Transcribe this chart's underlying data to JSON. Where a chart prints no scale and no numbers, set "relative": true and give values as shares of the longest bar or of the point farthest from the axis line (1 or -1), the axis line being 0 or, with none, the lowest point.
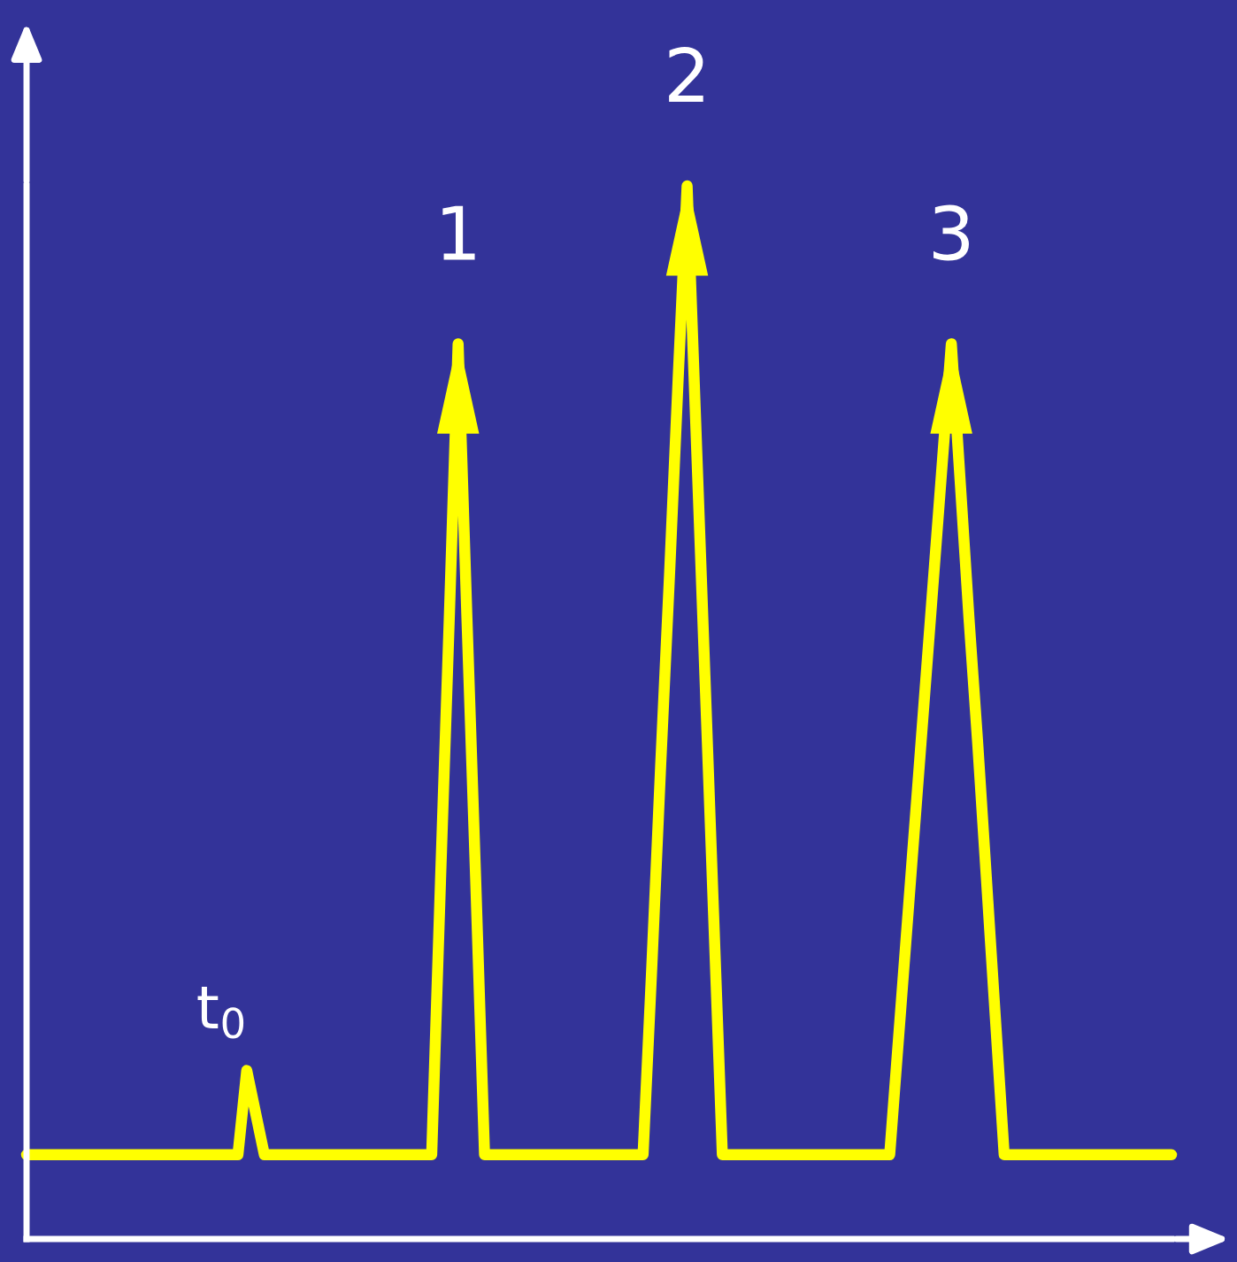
{
  "chart_data": {
    "type": "line",
    "relative": true,
    "tick_labels": false,
    "legend": false,
    "marker": "none",
    "line_style": "solid",
    "categories": [
      null,
      null,
      null,
      null,
      null,
      null,
      null,
      null,
      null,
      null,
      null,
      null,
      null,
      null,
      null,
      null,
      null,
      null,
      null,
      null,
      null,
      null,
      null,
      null,
      null,
      null,
      null,
      null,
      null,
      null,
      null,
      null,
      null,
      null,
      null,
      null,
      null,
      null,
      null,
      null,
      null,
      null,
      null,
      null,
      null,
      null,
      null,
      null,
      null,
      null,
      null,
      null,
      null,
      null,
      null,
      null,
      null,
      null,
      null,
      null,
      null,
      null,
      null,
      null,
      null,
      null,
      null,
      null,
      null,
      null,
      null,
      null,
      null,
      null,
      null,
      null,
      null,
      null,
      null,
      null,
      null,
      null,
      null,
      null,
      null,
      null,
      null,
      null,
      null,
      null,
      null,
      null,
      null,
      null,
      null,
      null,
      null,
      null,
      null,
      null,
      null,
      null,
      null,
      null,
      null,
      null,
      null,
      null,
      null,
      null,
      null,
      null,
      null,
      null,
      null,
      null,
      null,
      null,
      null,
      null,
      null,
      null,
      null,
      null,
      null,
      null,
      null,
      null,
      null,
      null,
      null
    ],
    "series": [
      {
        "color": "#ffff00",
        "values": [
          0.08,
          0.08,
          0.08,
          0.08,
          0.08,
          0.08,
          0.08,
          0.08,
          0.08,
          0.08,
          0.08,
          0.08,
          0.08,
          0.08,
          0.08,
          0.08,
          0.08,
          0.08,
          0.08,
          0.08,
          0.08,
          0.08,
          0.08,
          0.08,
          0.08,
          0.16,
          0.12,
          0.08,
          0.08,
          0.08,
          0.08,
          0.08,
          0.08,
          0.08,
          0.08,
          0.08,
          0.08,
          0.08,
          0.08,
          0.08,
          0.08,
          0.08,
          0.08,
          0.08,
          0.08,
          0.08,
          0.08,
          0.34,
          0.59,
          0.85,
          0.59,
          0.34,
          0.08,
          0.08,
          0.08,
          0.08,
          0.08,
          0.08,
          0.08,
          0.08,
          0.08,
          0.08,
          0.08,
          0.08,
          0.08,
          0.08,
          0.08,
          0.08,
          0.08,
          0.08,
          0.08,
          0.26,
          0.45,
          0.63,
          0.82,
          1.0,
          0.77,
          0.54,
          0.31,
          0.08,
          0.08,
          0.08,
          0.08,
          0.08,
          0.08,
          0.08,
          0.08,
          0.08,
          0.08,
          0.08,
          0.08,
          0.08,
          0.08,
          0.08,
          0.08,
          0.08,
          0.08,
          0.08,
          0.08,
          0.19,
          0.3,
          0.41,
          0.52,
          0.63,
          0.74,
          0.85,
          0.72,
          0.59,
          0.47,
          0.34,
          0.21,
          0.08,
          0.08,
          0.08,
          0.08,
          0.08,
          0.08,
          0.08,
          0.08,
          0.08,
          0.08,
          0.08,
          0.08,
          0.08,
          0.08,
          0.08,
          0.08,
          0.08,
          0.08,
          0.08,
          0.08
        ]
      }
    ],
    "annotations": [
      "t$_{0}$",
      "1",
      "2",
      "3"
    ]
  }
}
